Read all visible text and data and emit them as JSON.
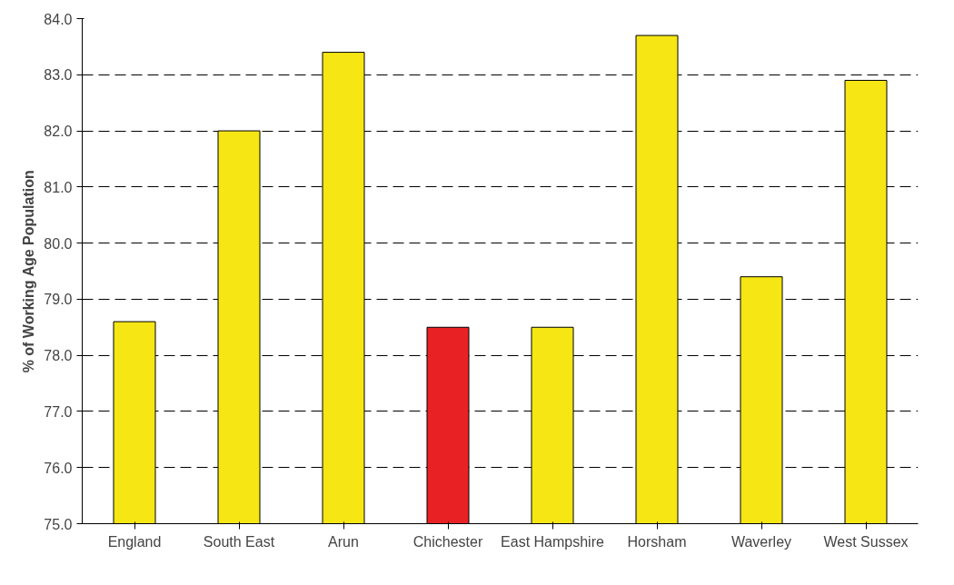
{
  "chart_data": {
    "type": "bar",
    "ylabel": "% of Working Age Population",
    "categories": [
      "England",
      "South East",
      "Arun",
      "Chichester",
      "East Hampshire",
      "Horsham",
      "Waverley",
      "West Sussex"
    ],
    "values": [
      78.6,
      82.0,
      83.4,
      78.5,
      78.5,
      83.7,
      79.4,
      82.9
    ],
    "colors": [
      "#f5e614",
      "#f5e614",
      "#f5e614",
      "#e82224",
      "#f5e614",
      "#f5e614",
      "#f5e614",
      "#f5e614"
    ],
    "ylim": [
      75,
      84
    ],
    "yticks": [
      {
        "value": 75,
        "label": "75.0"
      },
      {
        "value": 76,
        "label": "76.0"
      },
      {
        "value": 77,
        "label": "77.0"
      },
      {
        "value": 78,
        "label": "78.0"
      },
      {
        "value": 79,
        "label": "79.0"
      },
      {
        "value": 80,
        "label": "80.0"
      },
      {
        "value": 81,
        "label": "81.0"
      },
      {
        "value": 82,
        "label": "82.0"
      },
      {
        "value": 83,
        "label": "83.0"
      },
      {
        "value": 84,
        "label": "84.0"
      }
    ],
    "grid": "y"
  }
}
